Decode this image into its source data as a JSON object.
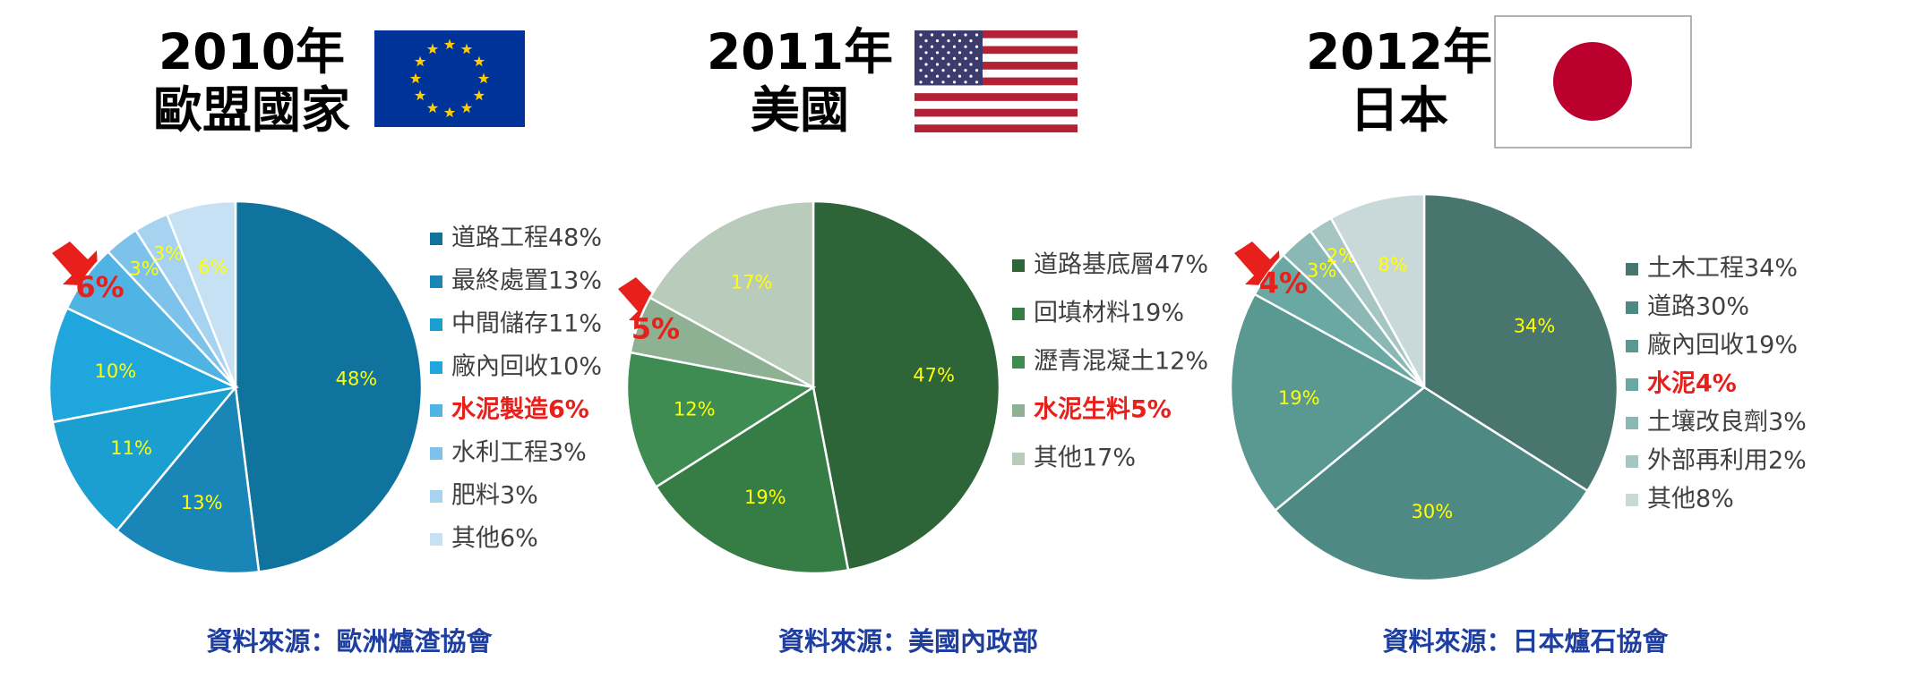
{
  "chart_data": [
    {
      "type": "pie",
      "title": "2010年",
      "subtitle": "歐盟國家",
      "source": "資料來源：歐洲爐渣協會",
      "categories": [
        "道路工程48%",
        "最終處置13%",
        "中間儲存11%",
        "廠內回收10%",
        "水泥製造6%",
        "水利工程3%",
        "肥料3%",
        "其他6%"
      ],
      "values": [
        48,
        13,
        11,
        10,
        6,
        3,
        3,
        6
      ],
      "value_labels": [
        "48%",
        "13%",
        "11%",
        "10%",
        "6%",
        "3%",
        "3%",
        "6%"
      ],
      "colors": [
        "#10739e",
        "#1a86b8",
        "#1b9ed0",
        "#1fa7dd",
        "#4fb3e3",
        "#7cc2ea",
        "#a6d3f0",
        "#c6e0f4"
      ],
      "highlight": 4
    },
    {
      "type": "pie",
      "title": "2011年",
      "subtitle": "美國",
      "source": "資料來源：美國內政部",
      "categories": [
        "道路基底層47%",
        "回填材料19%",
        "瀝青混凝土12%",
        "水泥生料5%",
        "其他17%"
      ],
      "values": [
        47,
        19,
        12,
        5,
        17
      ],
      "value_labels": [
        "47%",
        "19%",
        "12%",
        "5%",
        "17%"
      ],
      "colors": [
        "#2d6438",
        "#367c45",
        "#3f8c52",
        "#8eb093",
        "#b9cbbb"
      ],
      "highlight": 3
    },
    {
      "type": "pie",
      "title": "2012年",
      "subtitle": "日本",
      "source": "資料來源：日本爐石協會",
      "categories": [
        "土木工程34%",
        "道路30%",
        "廠內回收19%",
        "水泥4%",
        "土壤改良劑3%",
        "外部再利用2%",
        "其他8%"
      ],
      "values": [
        34,
        30,
        19,
        4,
        3,
        2,
        8
      ],
      "value_labels": [
        "34%",
        "30%",
        "19%",
        "4%",
        "3%",
        "2%",
        "8%"
      ],
      "colors": [
        "#48766f",
        "#4f8983",
        "#5a9892",
        "#6aa8a3",
        "#8bb8b4",
        "#a6c6c4",
        "#c9d8d8"
      ],
      "highlight": 3
    }
  ]
}
